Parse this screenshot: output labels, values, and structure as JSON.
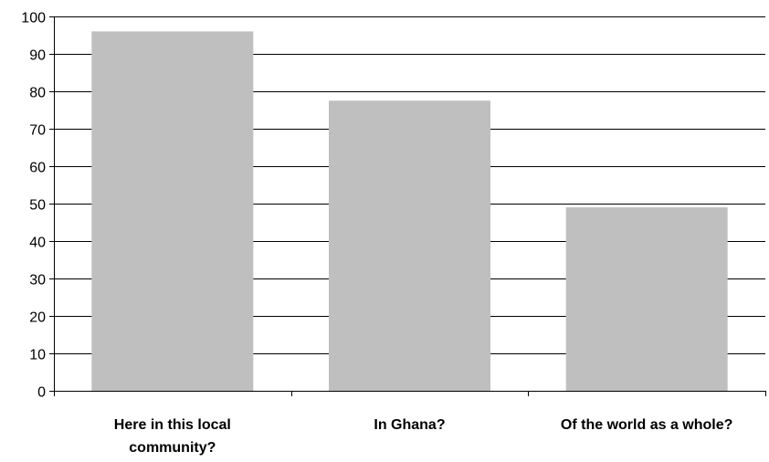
{
  "chart_data": {
    "type": "bar",
    "title": "",
    "xlabel": "",
    "ylabel": "",
    "categories": [
      [
        "Here in this local",
        "community?"
      ],
      [
        "In Ghana?"
      ],
      [
        "Of the world as a whole?"
      ]
    ],
    "values": [
      96,
      77.5,
      49
    ],
    "ylim": [
      0,
      100
    ],
    "yticks": [
      0,
      10,
      20,
      30,
      40,
      50,
      60,
      70,
      80,
      90,
      100
    ],
    "grid": true,
    "legend": "none",
    "colors": {
      "bar": "#bfbfbf",
      "grid": "#000000",
      "axis": "#000000"
    }
  }
}
